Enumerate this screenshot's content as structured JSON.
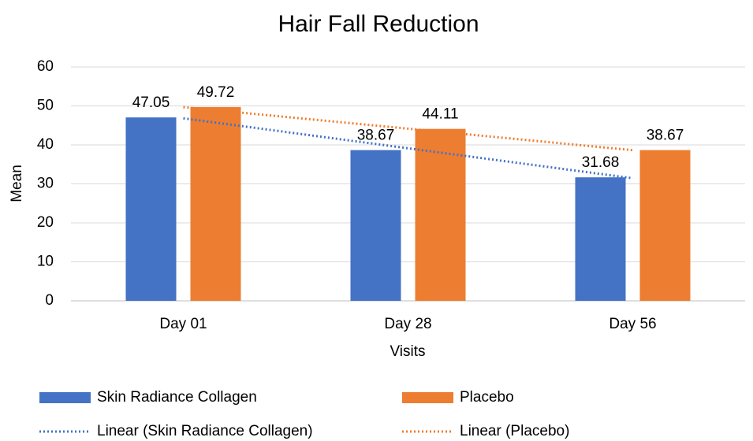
{
  "chart_data": {
    "type": "bar",
    "title": "Hair Fall Reduction",
    "xlabel": "Visits",
    "ylabel": "Mean",
    "categories": [
      "Day 01",
      "Day 28",
      "Day 56"
    ],
    "series": [
      {
        "name": "Skin Radiance Collagen",
        "color": "#4472c4",
        "values": [
          47.05,
          38.67,
          31.68
        ],
        "trendline": {
          "name": "Linear (Skin Radiance Collagen)",
          "type": "linear",
          "style": "dotted"
        }
      },
      {
        "name": "Placebo",
        "color": "#ed7d31",
        "values": [
          49.72,
          44.11,
          38.67
        ],
        "trendline": {
          "name": "Linear (Placebo)",
          "type": "linear",
          "style": "dotted"
        }
      }
    ],
    "ylim": [
      0,
      60
    ],
    "yticks": [
      0,
      10,
      20,
      30,
      40,
      50,
      60
    ],
    "grid": true,
    "legend": "bottom",
    "data_labels": true
  }
}
